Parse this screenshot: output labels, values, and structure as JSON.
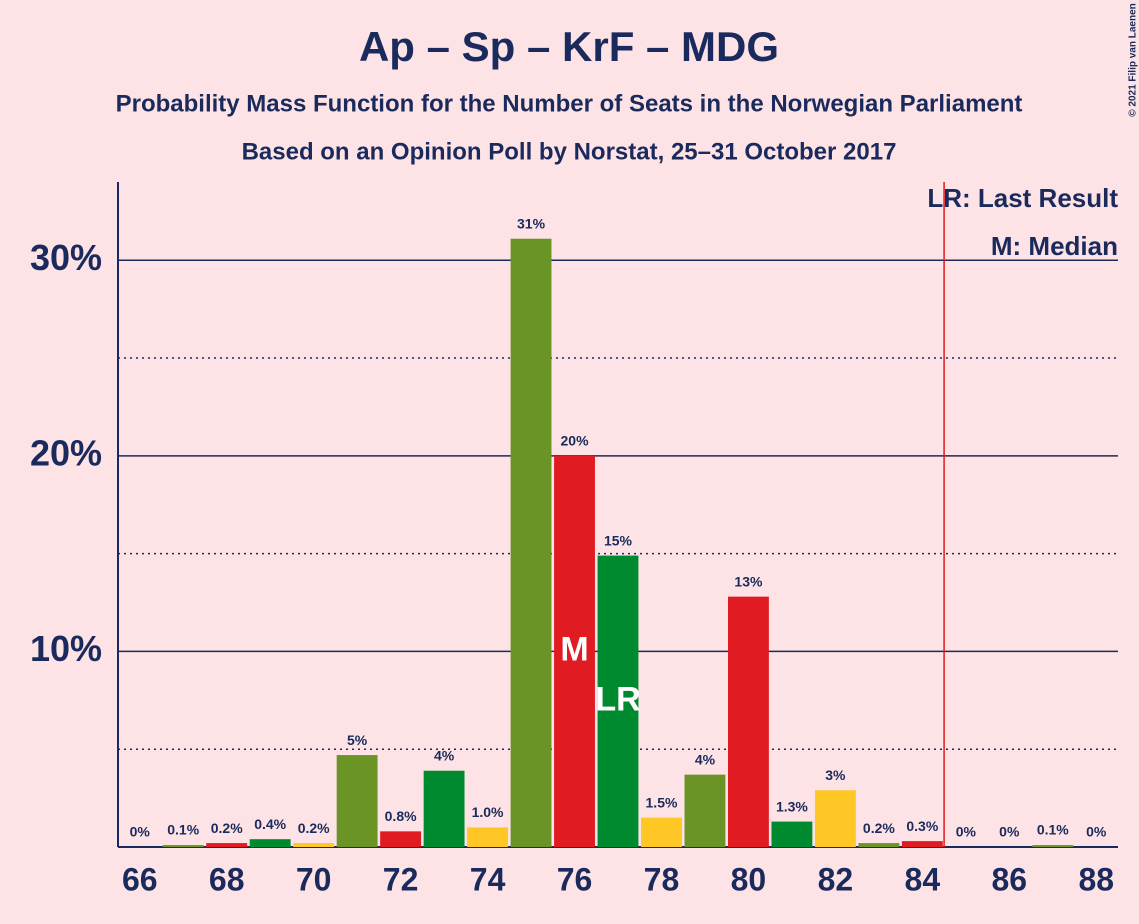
{
  "chart_data": {
    "type": "bar",
    "title": "Ap – Sp – KrF – MDG",
    "subtitle": "Probability Mass Function for the Number of Seats in the Norwegian Parliament",
    "subtitle2": "Based on an Opinion Poll by Norstat, 25–31 October 2017",
    "copyright": "© 2021 Filip van Laenen",
    "x": [
      66,
      67,
      68,
      69,
      70,
      71,
      72,
      73,
      74,
      75,
      76,
      77,
      78,
      79,
      80,
      81,
      82,
      83,
      84,
      85,
      86,
      87,
      88
    ],
    "values": [
      0,
      0.1,
      0.2,
      0.4,
      0.2,
      4.7,
      0.8,
      3.9,
      1.0,
      31.1,
      20.0,
      14.9,
      1.5,
      3.7,
      12.8,
      1.3,
      2.9,
      0.2,
      0.3,
      0,
      0,
      0.1,
      0
    ],
    "value_labels": [
      "0%",
      "0.1%",
      "0.2%",
      "0.4%",
      "0.2%",
      "5%",
      "0.8%",
      "4%",
      "1.0%",
      "31%",
      "20%",
      "15%",
      "1.5%",
      "4%",
      "13%",
      "1.3%",
      "3%",
      "0.2%",
      "0.3%",
      "0%",
      "0%",
      "0.1%",
      "0%"
    ],
    "colors": [
      "#ffc726",
      "#6b9427",
      "#e01b22",
      "#008a30",
      "#ffc726",
      "#6b9427",
      "#e01b22",
      "#008a30",
      "#ffc726",
      "#6b9427",
      "#e01b22",
      "#008a30",
      "#ffc726",
      "#6b9427",
      "#e01b22",
      "#008a30",
      "#ffc726",
      "#6b9427",
      "#e01b22",
      "#008a30",
      "#ffc726",
      "#6b9427",
      "#e01b22"
    ],
    "xlim": [
      65.5,
      88.5
    ],
    "xticks": [
      66,
      68,
      70,
      72,
      74,
      76,
      78,
      80,
      82,
      84,
      86,
      88
    ],
    "ylim": [
      0,
      34
    ],
    "yticks": [
      {
        "value": 10,
        "label": "10%"
      },
      {
        "value": 20,
        "label": "20%"
      },
      {
        "value": 30,
        "label": "30%"
      }
    ],
    "minor_yticks": [
      5,
      15,
      25
    ],
    "grid": true,
    "majority_line": 84.5,
    "median": {
      "x": 76,
      "label": "M"
    },
    "last_result": {
      "x": 77,
      "label": "LR"
    },
    "legend": [
      "LR: Last Result",
      "M: Median"
    ]
  }
}
